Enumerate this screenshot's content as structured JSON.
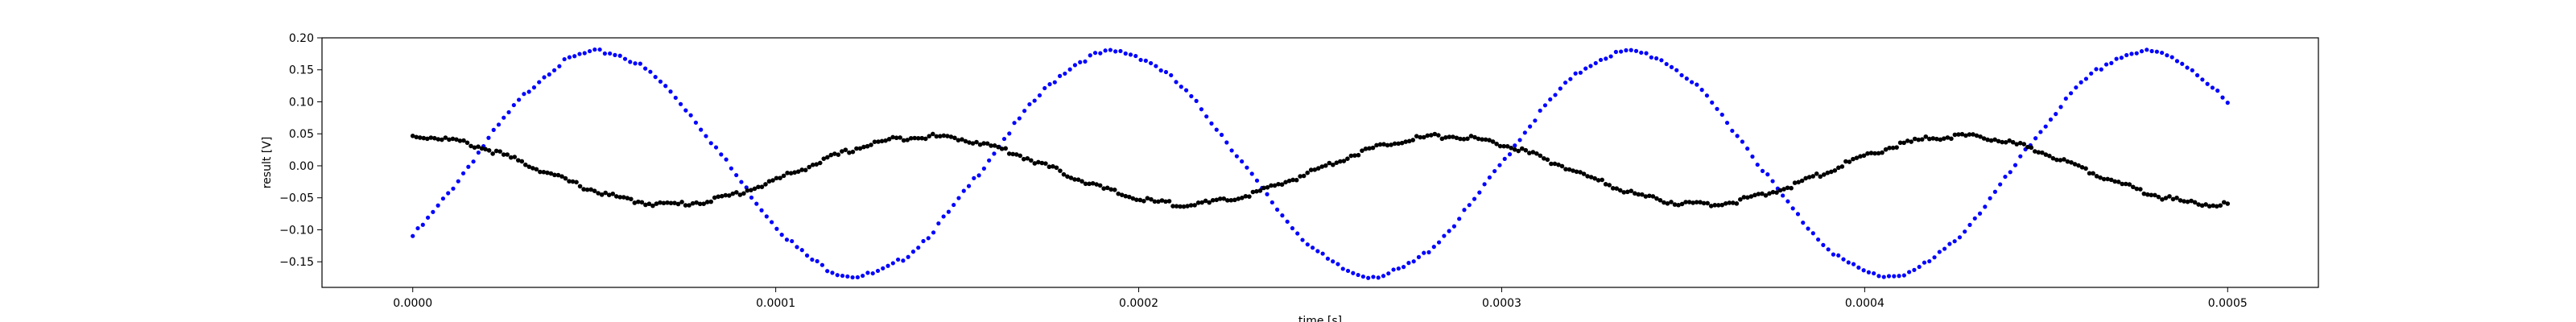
{
  "chart_data": {
    "type": "scatter",
    "xlabel": "time [s]",
    "ylabel": "result [V]",
    "xlim": [
      -2.5e-05,
      0.000525
    ],
    "ylim": [
      -0.19,
      0.2
    ],
    "grid": false,
    "x_ticks": [
      "0.0000",
      "0.0001",
      "0.0002",
      "0.0003",
      "0.0004",
      "0.0005"
    ],
    "x_tick_values": [
      0,
      0.0001,
      0.0002,
      0.0003,
      0.0004,
      0.0005
    ],
    "y_ticks": [
      "−0.15",
      "−0.10",
      "−0.05",
      "0.00",
      "0.05",
      "0.10",
      "0.15",
      "0.20"
    ],
    "y_tick_values": [
      -0.15,
      -0.1,
      -0.05,
      0.0,
      0.05,
      0.1,
      0.15,
      0.2
    ],
    "series": [
      {
        "color": "#0000ff",
        "marker": "dot",
        "x_range": [
          0,
          0.0005
        ],
        "points": 360,
        "model": "sine",
        "amplitude": 0.175,
        "period": 0.000142,
        "phase_rad": -0.7,
        "offset": 0.003
      },
      {
        "color": "#000000",
        "marker": "dot",
        "x_range": [
          0,
          0.0005
        ],
        "points": 500,
        "model": "cosine",
        "amplitude": 0.053,
        "period": 0.000142,
        "phase_rad": 0.0,
        "offset": -0.007
      }
    ]
  }
}
